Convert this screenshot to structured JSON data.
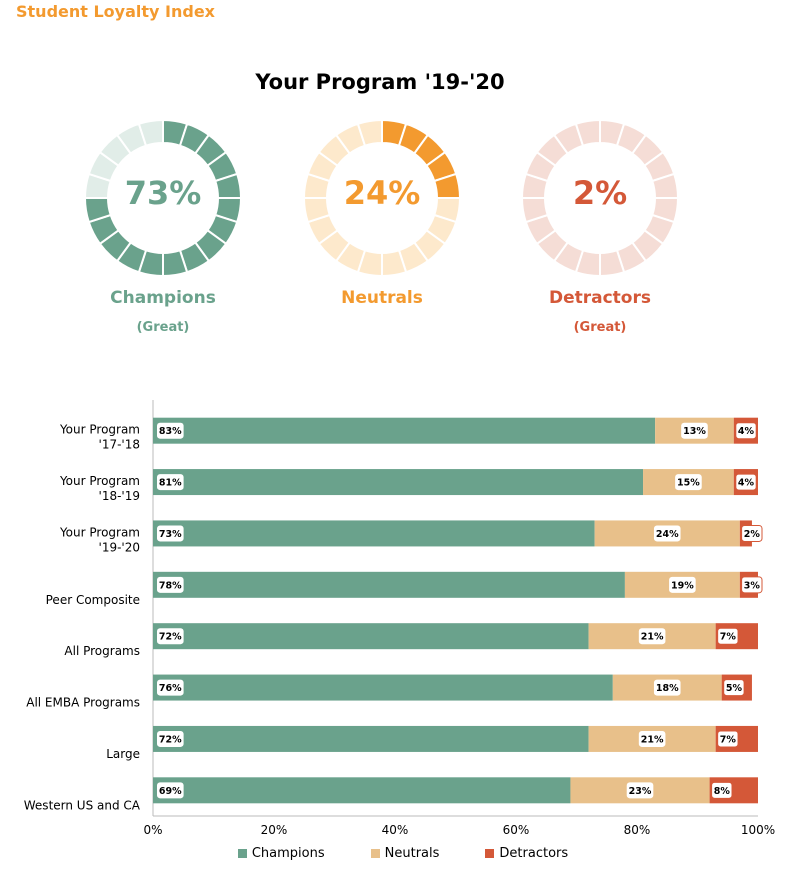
{
  "header": {
    "title": "Student Loyalty Index"
  },
  "donuts": {
    "title": "Your Program '19-'20",
    "items": [
      {
        "pct_label": "73%",
        "value": 73,
        "label": "Champions",
        "rating": "(Great)",
        "color": "#6aa28c",
        "light": "#e1ede8"
      },
      {
        "pct_label": "24%",
        "value": 24,
        "label": "Neutrals",
        "rating": "",
        "color": "#f39a2f",
        "light": "#fde9cc"
      },
      {
        "pct_label": "2%",
        "value": 2,
        "label": "Detractors",
        "rating": "(Great)",
        "color": "#d45838",
        "light": "#f5ddd6"
      }
    ]
  },
  "chart_data": {
    "type": "bar",
    "orientation": "horizontal",
    "stacked": true,
    "categories": [
      [
        "Your Program",
        "'17-'18"
      ],
      [
        "Your Program",
        "'18-'19"
      ],
      [
        "Your Program",
        "'19-'20"
      ],
      [
        "Peer Composite"
      ],
      [
        "All Programs"
      ],
      [
        "All EMBA Programs"
      ],
      [
        "Large"
      ],
      [
        "Western US and CA"
      ]
    ],
    "series": [
      {
        "name": "Champions",
        "color": "#6aa28c",
        "values": [
          83,
          81,
          73,
          78,
          72,
          76,
          72,
          69
        ],
        "labels": [
          "83%",
          "81%",
          "73%",
          "78%",
          "72%",
          "76%",
          "72%",
          "69%"
        ]
      },
      {
        "name": "Neutrals",
        "color": "#e8c08a",
        "values": [
          13,
          15,
          24,
          19,
          21,
          18,
          21,
          23
        ],
        "labels": [
          "13%",
          "15%",
          "24%",
          "19%",
          "21%",
          "18%",
          "21%",
          "23%"
        ]
      },
      {
        "name": "Detractors",
        "color": "#d45838",
        "values": [
          4,
          4,
          2,
          3,
          7,
          5,
          7,
          8
        ],
        "labels": [
          "4%",
          "4%",
          "2%",
          "3%",
          "7%",
          "5%",
          "7%",
          "8%"
        ]
      }
    ],
    "xlim": [
      0,
      100
    ],
    "xticks": [
      "0%",
      "20%",
      "40%",
      "60%",
      "80%",
      "100%"
    ],
    "legend": "bottom"
  }
}
